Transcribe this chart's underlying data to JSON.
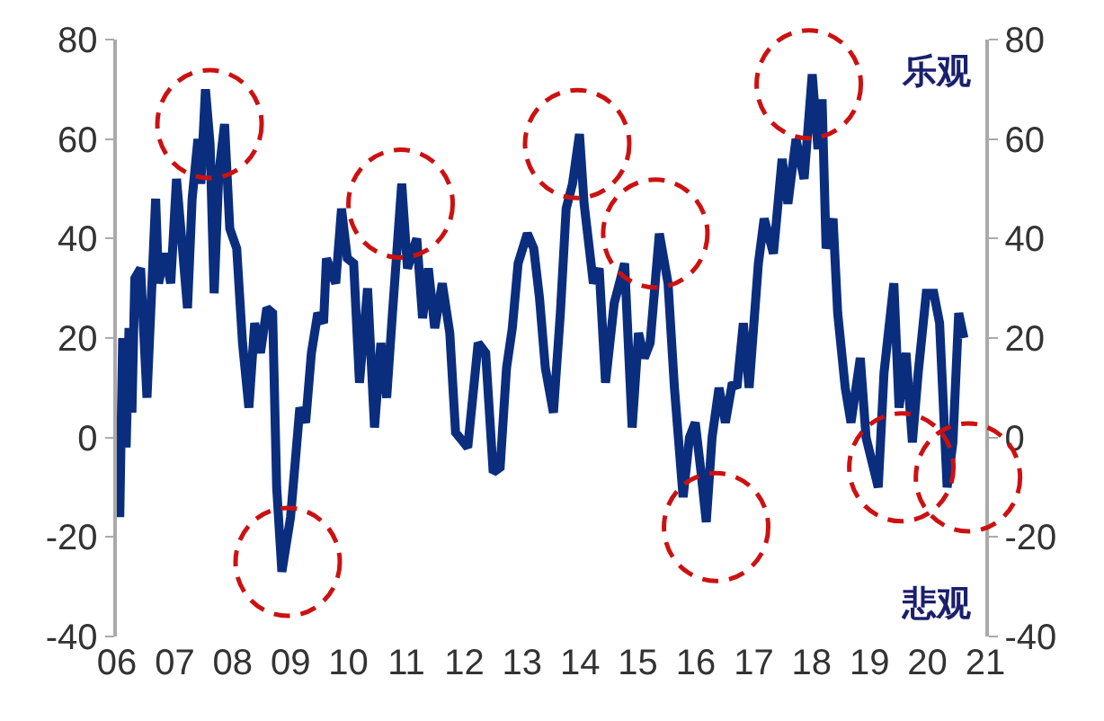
{
  "chart_data": {
    "type": "line",
    "x": [
      2006.05,
      2006.1,
      2006.16,
      2006.21,
      2006.26,
      2006.31,
      2006.41,
      2006.52,
      2006.67,
      2006.72,
      2006.83,
      2006.93,
      2007.03,
      2007.14,
      2007.22,
      2007.3,
      2007.4,
      2007.45,
      2007.53,
      2007.61,
      2007.68,
      2007.76,
      2007.86,
      2007.95,
      2008.07,
      2008.17,
      2008.28,
      2008.38,
      2008.48,
      2008.59,
      2008.69,
      2008.76,
      2008.85,
      2009,
      2009.16,
      2009.26,
      2009.36,
      2009.47,
      2009.57,
      2009.62,
      2009.78,
      2009.88,
      2009.98,
      2010.09,
      2010.19,
      2010.33,
      2010.45,
      2010.56,
      2010.66,
      2010.76,
      2010.92,
      2011.02,
      2011.18,
      2011.28,
      2011.38,
      2011.49,
      2011.62,
      2011.75,
      2011.85,
      2012.06,
      2012.24,
      2012.37,
      2012.5,
      2012.62,
      2012.73,
      2012.83,
      2012.93,
      2013.09,
      2013.2,
      2013.3,
      2013.4,
      2013.54,
      2013.66,
      2013.76,
      2013.87,
      2013.99,
      2014.07,
      2014.23,
      2014.33,
      2014.44,
      2014.59,
      2014.77,
      2014.9,
      2015.01,
      2015.11,
      2015.21,
      2015.37,
      2015.52,
      2015.63,
      2015.78,
      2015.89,
      2015.99,
      2016.09,
      2016.18,
      2016.28,
      2016.4,
      2016.51,
      2016.63,
      2016.71,
      2016.82,
      2016.92,
      2017.08,
      2017.18,
      2017.34,
      2017.49,
      2017.59,
      2017.73,
      2017.87,
      2018.01,
      2018.11,
      2018.18,
      2018.25,
      2018.37,
      2018.45,
      2018.58,
      2018.68,
      2018.84,
      2018.94,
      2019.15,
      2019.25,
      2019.42,
      2019.51,
      2019.63,
      2019.74,
      2019.84,
      2019.98,
      2020.11,
      2020.21,
      2020.34,
      2020.44,
      2020.54,
      2020.63
    ],
    "series": [
      {
        "color": "#0a2d7e",
        "values": [
          -16,
          20,
          -2,
          22,
          5,
          32,
          34,
          8,
          48,
          31,
          37,
          31,
          52,
          37,
          26,
          48,
          60,
          51,
          70,
          59,
          29,
          53,
          63,
          42,
          38,
          19,
          6,
          23,
          17,
          26,
          25,
          -10,
          -27,
          -16,
          6,
          3,
          17,
          25,
          23,
          36,
          31,
          46,
          36,
          35,
          11,
          30,
          2,
          19,
          8,
          25,
          51,
          34,
          40,
          24,
          34,
          22,
          31,
          21,
          1,
          -2,
          19,
          17,
          -7,
          -6,
          14,
          22,
          35,
          41,
          38,
          28,
          14,
          5,
          25,
          46,
          51,
          61,
          47,
          31,
          34,
          11,
          27,
          35,
          2,
          21,
          16,
          19,
          41,
          31,
          10,
          -12,
          0,
          3,
          -7,
          -17,
          0,
          10,
          3,
          11,
          10,
          23,
          10,
          35,
          44,
          37,
          56,
          47,
          60,
          52,
          73,
          58,
          68,
          38,
          44,
          25,
          10,
          3,
          16,
          0,
          -10,
          13,
          31,
          6,
          17,
          -1,
          13,
          29,
          29,
          23,
          -10,
          -1,
          25,
          20
        ]
      }
    ],
    "xlim": [
      2006,
      2021
    ],
    "xticks": [
      {
        "value": 2006,
        "label": "06"
      },
      {
        "value": 2007,
        "label": "07"
      },
      {
        "value": 2008,
        "label": "08"
      },
      {
        "value": 2009,
        "label": "09"
      },
      {
        "value": 2010,
        "label": "10"
      },
      {
        "value": 2011,
        "label": "11"
      },
      {
        "value": 2012,
        "label": "12"
      },
      {
        "value": 2013,
        "label": "13"
      },
      {
        "value": 2014,
        "label": "14"
      },
      {
        "value": 2015,
        "label": "15"
      },
      {
        "value": 2016,
        "label": "16"
      },
      {
        "value": 2017,
        "label": "17"
      },
      {
        "value": 2018,
        "label": "18"
      },
      {
        "value": 2019,
        "label": "19"
      },
      {
        "value": 2020,
        "label": "20"
      },
      {
        "value": 2021,
        "label": "21"
      }
    ],
    "ylim": [
      -40,
      80
    ],
    "yticks": [
      -40,
      -20,
      0,
      20,
      40,
      60,
      80
    ],
    "y2lim": [
      -40,
      80
    ],
    "y2ticks": [
      -40,
      -20,
      0,
      20,
      40,
      60,
      80
    ],
    "annotations": [
      "乐观",
      "悲观"
    ],
    "grid": false,
    "marker": "none",
    "line_style": "solid"
  }
}
